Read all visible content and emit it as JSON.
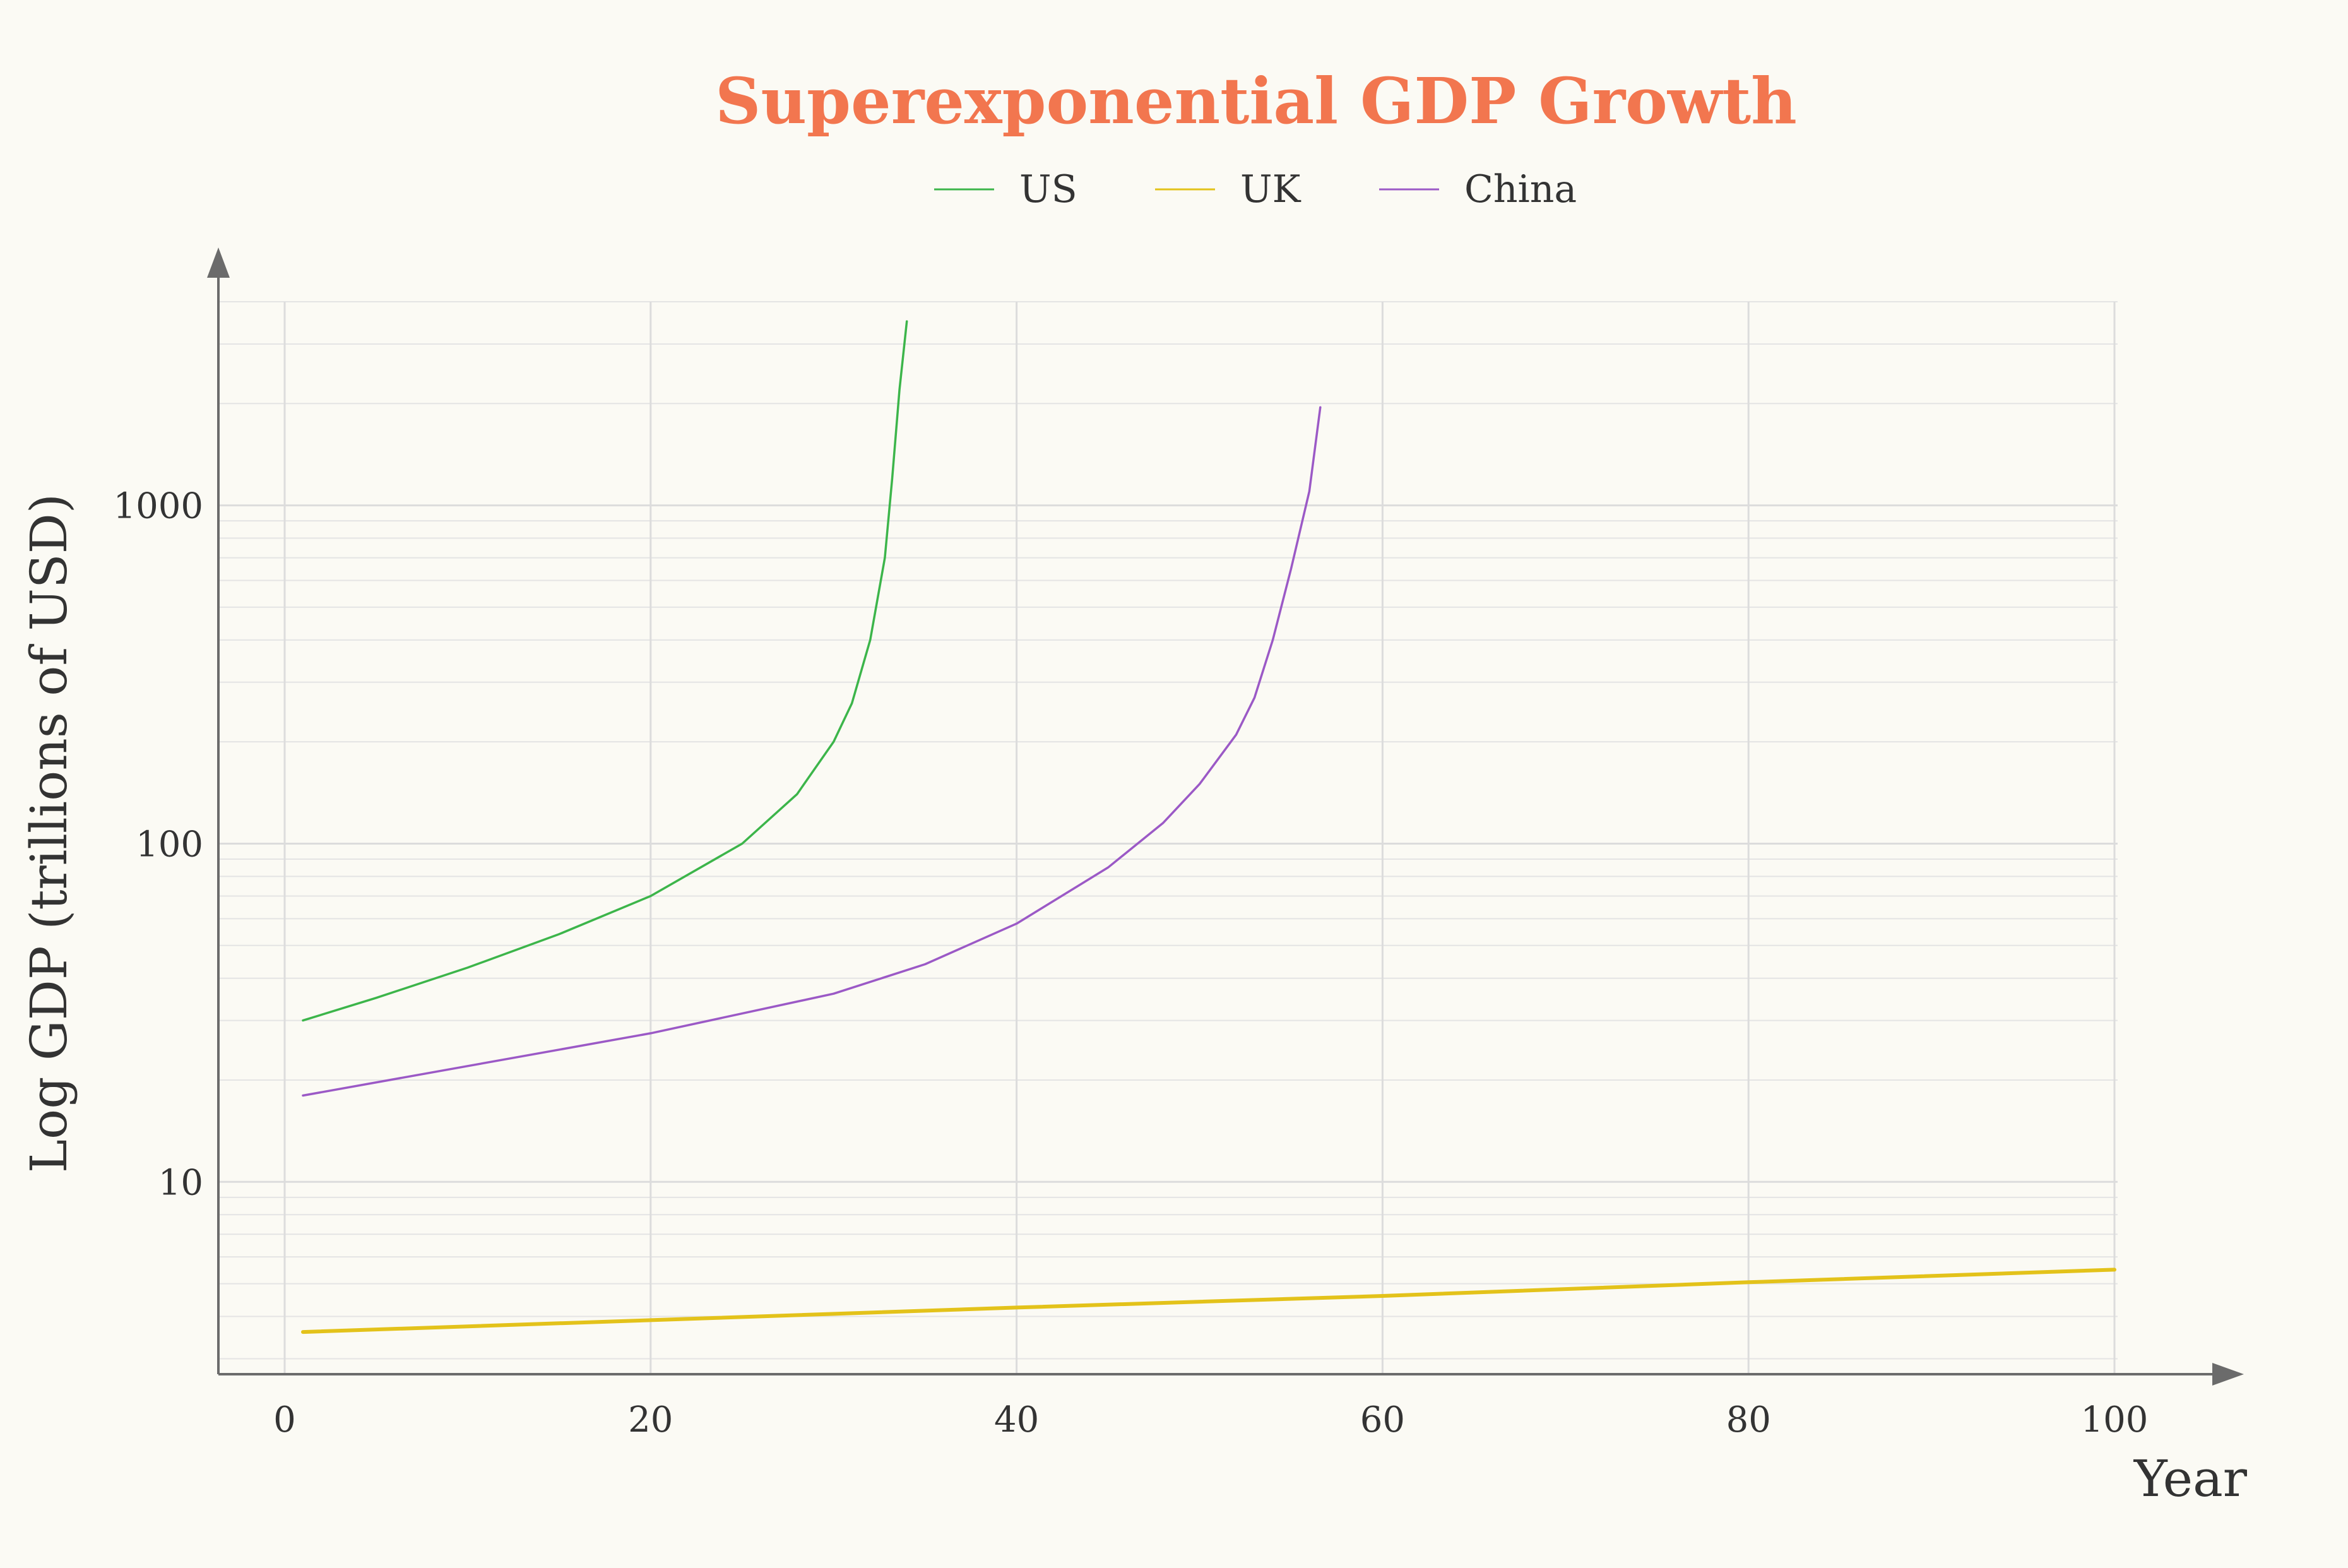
{
  "chart_data": {
    "type": "line",
    "title": "Superexponential GDP Growth",
    "xlabel": "Year",
    "ylabel": "Log GDP (trillions of USD)",
    "xlim": [
      -4,
      100
    ],
    "ylim": [
      2.7,
      4000
    ],
    "yscale": "log",
    "x_ticks": [
      0,
      20,
      40,
      60,
      80,
      100
    ],
    "y_ticks": [
      10,
      100,
      1000
    ],
    "grid": true,
    "legend": "top-center",
    "series": [
      {
        "name": "US",
        "color": "#3cb54a",
        "points": [
          [
            1,
            30
          ],
          [
            5,
            35
          ],
          [
            10,
            43
          ],
          [
            15,
            54
          ],
          [
            20,
            70
          ],
          [
            25,
            100
          ],
          [
            28,
            140
          ],
          [
            30,
            200
          ],
          [
            31,
            260
          ],
          [
            32,
            400
          ],
          [
            32.8,
            700
          ],
          [
            33.2,
            1200
          ],
          [
            33.6,
            2200
          ],
          [
            34,
            3500
          ]
        ]
      },
      {
        "name": "UK",
        "color": "#e3c21a",
        "points": [
          [
            1,
            3.6
          ],
          [
            20,
            3.9
          ],
          [
            40,
            4.25
          ],
          [
            60,
            4.6
          ],
          [
            80,
            5.05
          ],
          [
            100,
            5.5
          ]
        ]
      },
      {
        "name": "China",
        "color": "#9b59c6",
        "points": [
          [
            1,
            18
          ],
          [
            10,
            22
          ],
          [
            20,
            27.5
          ],
          [
            30,
            36
          ],
          [
            35,
            44
          ],
          [
            40,
            58
          ],
          [
            45,
            85
          ],
          [
            48,
            115
          ],
          [
            50,
            150
          ],
          [
            52,
            210
          ],
          [
            53,
            270
          ],
          [
            54,
            400
          ],
          [
            55,
            650
          ],
          [
            56,
            1100
          ],
          [
            56.6,
            1950
          ]
        ]
      }
    ]
  }
}
